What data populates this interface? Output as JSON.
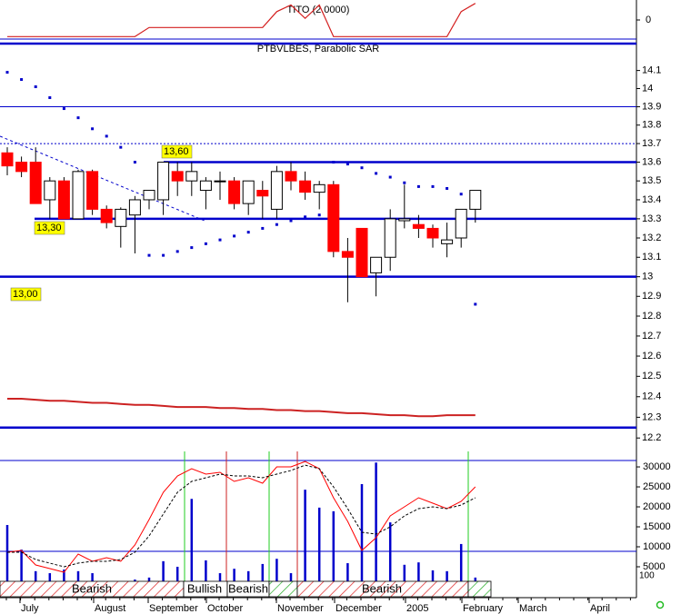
{
  "chart_data": [
    {
      "type": "line",
      "title": "TITO (2.0000)",
      "series": [
        {
          "color": "#d42020",
          "values": [
            -1,
            -1,
            -1,
            -1,
            -1,
            -1,
            -1,
            -1,
            -1,
            -1,
            -0.45,
            -0.45,
            -0.45,
            -0.45,
            -0.45,
            -0.45,
            -0.45,
            -0.45,
            -0.45,
            0.5,
            0.9,
            0.1,
            0.9,
            -1,
            -1,
            -1,
            -1,
            -1,
            -1,
            -1,
            -1,
            -1,
            0.5,
            1.0
          ]
        }
      ],
      "ylim": [
        -1.2,
        1.2
      ],
      "yticks": [
        0
      ]
    },
    {
      "type": "candlestick",
      "title": "PTBVLBES, Parabolic SAR",
      "log_scale": true,
      "ylim": [
        12.14,
        14.24
      ],
      "yticks": [
        12.2,
        12.3,
        12.4,
        12.5,
        12.6,
        12.7,
        12.8,
        12.9,
        13.0,
        13.1,
        13.2,
        13.3,
        13.4,
        13.5,
        13.6,
        13.7,
        13.8,
        13.9,
        14.0,
        14.1
      ],
      "open": [
        13.65,
        13.6,
        13.6,
        13.4,
        13.5,
        13.3,
        13.55,
        13.35,
        13.26,
        13.32,
        13.4,
        13.4,
        13.55,
        13.5,
        13.45,
        13.5,
        13.5,
        13.38,
        13.45,
        13.35,
        13.55,
        13.5,
        13.44,
        13.48,
        13.13,
        13.25,
        13.02,
        13.1,
        13.29,
        13.27,
        13.25,
        13.17,
        13.2,
        13.35
      ],
      "high": [
        13.68,
        13.63,
        13.68,
        13.52,
        13.52,
        13.56,
        13.56,
        13.37,
        13.36,
        13.42,
        13.45,
        13.6,
        13.6,
        13.6,
        13.52,
        13.55,
        13.52,
        13.5,
        13.5,
        13.58,
        13.6,
        13.55,
        13.5,
        13.5,
        13.2,
        13.25,
        13.1,
        13.35,
        13.48,
        13.32,
        13.27,
        13.28,
        13.35,
        13.45
      ],
      "low": [
        13.53,
        13.52,
        13.38,
        13.3,
        13.3,
        13.3,
        13.32,
        13.25,
        13.15,
        13.12,
        13.35,
        13.32,
        13.42,
        13.42,
        13.35,
        13.4,
        13.35,
        13.32,
        13.3,
        13.3,
        13.45,
        13.4,
        13.35,
        13.1,
        12.87,
        13.0,
        12.9,
        13.03,
        13.25,
        13.2,
        13.15,
        13.1,
        13.15,
        13.28
      ],
      "close": [
        13.58,
        13.55,
        13.38,
        13.5,
        13.3,
        13.55,
        13.35,
        13.28,
        13.35,
        13.4,
        13.45,
        13.6,
        13.5,
        13.55,
        13.5,
        13.5,
        13.38,
        13.5,
        13.42,
        13.55,
        13.5,
        13.44,
        13.48,
        13.13,
        13.1,
        13.0,
        13.1,
        13.3,
        13.3,
        13.25,
        13.2,
        13.19,
        13.35,
        13.45
      ],
      "up_color": "#ffffff",
      "down_color": "#ff0000",
      "sar": {
        "color": "#0000cc",
        "values": [
          14.09,
          14.05,
          14.01,
          13.95,
          13.89,
          13.84,
          13.78,
          13.74,
          13.68,
          13.6,
          13.11,
          13.11,
          13.13,
          13.15,
          13.17,
          13.19,
          13.21,
          13.23,
          13.25,
          13.27,
          13.29,
          13.31,
          13.32,
          13.6,
          13.59,
          13.57,
          13.54,
          13.52,
          13.49,
          13.47,
          13.47,
          13.46,
          13.43,
          12.86
        ]
      },
      "moving_average": {
        "color": "#cc2222",
        "values": [
          12.39,
          12.39,
          12.385,
          12.38,
          12.38,
          12.375,
          12.37,
          12.37,
          12.365,
          12.36,
          12.36,
          12.355,
          12.35,
          12.35,
          12.35,
          12.345,
          12.345,
          12.34,
          12.34,
          12.335,
          12.335,
          12.33,
          12.33,
          12.325,
          12.32,
          12.32,
          12.315,
          12.31,
          12.31,
          12.305,
          12.305,
          12.31,
          12.31,
          12.31
        ]
      },
      "levels": [
        {
          "value": 13.6,
          "label": "13,60"
        },
        {
          "value": 13.3,
          "label": "13,30"
        },
        {
          "value": 13.0,
          "label": "13,00"
        },
        {
          "value": 12.25
        }
      ],
      "guides": [
        13.9,
        13.7
      ],
      "months": [
        "July",
        "August",
        "September",
        "October",
        "November",
        "December",
        "2005",
        "February",
        "March",
        "April"
      ],
      "regimes": [
        "Bearish",
        "Bullish",
        "Bearish",
        "Bearish"
      ]
    },
    {
      "type": "bar",
      "annotation": "100",
      "ylim": [
        0,
        31600
      ],
      "yticks": [
        5000,
        10000,
        15000,
        20000,
        25000,
        30000
      ],
      "reference": 8860,
      "series": [
        {
          "type": "bar",
          "color": "#0000cc",
          "values": [
            15450,
            9300,
            3900,
            3400,
            4300,
            3900,
            3400,
            null,
            null,
            1800,
            2300,
            6400,
            5000,
            22000,
            6600,
            3400,
            4500,
            3900,
            5700,
            7000,
            3400,
            24300,
            19800,
            18900,
            5900,
            25700,
            31100,
            16100,
            5500,
            6100,
            4100,
            3900,
            10700,
            2300
          ]
        },
        {
          "type": "line",
          "color": "#ff0000",
          "values": [
            8640,
            9090,
            5450,
            4550,
            3640,
            8180,
            6360,
            7270,
            6360,
            10450,
            16820,
            23640,
            27730,
            29550,
            28180,
            28640,
            26360,
            27270,
            25910,
            30000,
            30000,
            31360,
            29550,
            22270,
            16360,
            9090,
            12270,
            17730,
            20000,
            22270,
            20910,
            19550,
            21360,
            25000
          ]
        },
        {
          "type": "line",
          "color": "#000000",
          "dashed": true,
          "values": [
            8640,
            8640,
            6820,
            5910,
            5000,
            5910,
            6360,
            6360,
            6820,
            8640,
            12730,
            18180,
            23640,
            26360,
            27270,
            28180,
            27730,
            27730,
            27270,
            28180,
            29090,
            30450,
            29550,
            25000,
            19550,
            13640,
            13180,
            15000,
            17730,
            19550,
            20000,
            19550,
            20450,
            22270
          ]
        }
      ]
    }
  ]
}
